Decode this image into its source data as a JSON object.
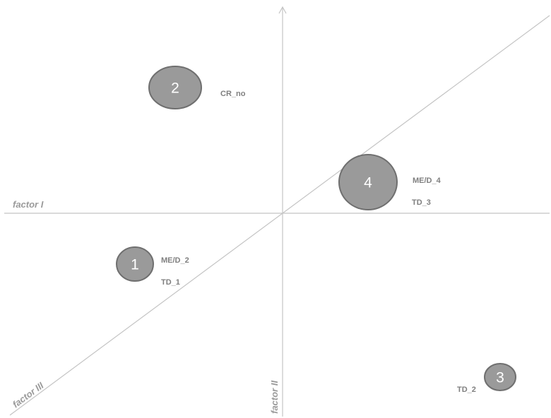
{
  "axes": {
    "factor_1": "factor I",
    "factor_2": "factor II",
    "factor_3": "factor III"
  },
  "clusters": [
    {
      "number": "1",
      "variables": [
        "ME/D_2",
        "TD_1"
      ]
    },
    {
      "number": "2",
      "variables": [
        "CR_no"
      ]
    },
    {
      "number": "3",
      "variables": [
        "TD_2"
      ]
    },
    {
      "number": "4",
      "variables": [
        "ME/D_4",
        "TD_3"
      ]
    }
  ],
  "colors": {
    "axis": "#c4c4c4",
    "axis_label": "#9a9a9a",
    "bubble_fill": "#9a9a9a",
    "bubble_stroke": "#6f6f6f",
    "bubble_number": "#ffffff",
    "variable_label": "#7f7f7f"
  }
}
